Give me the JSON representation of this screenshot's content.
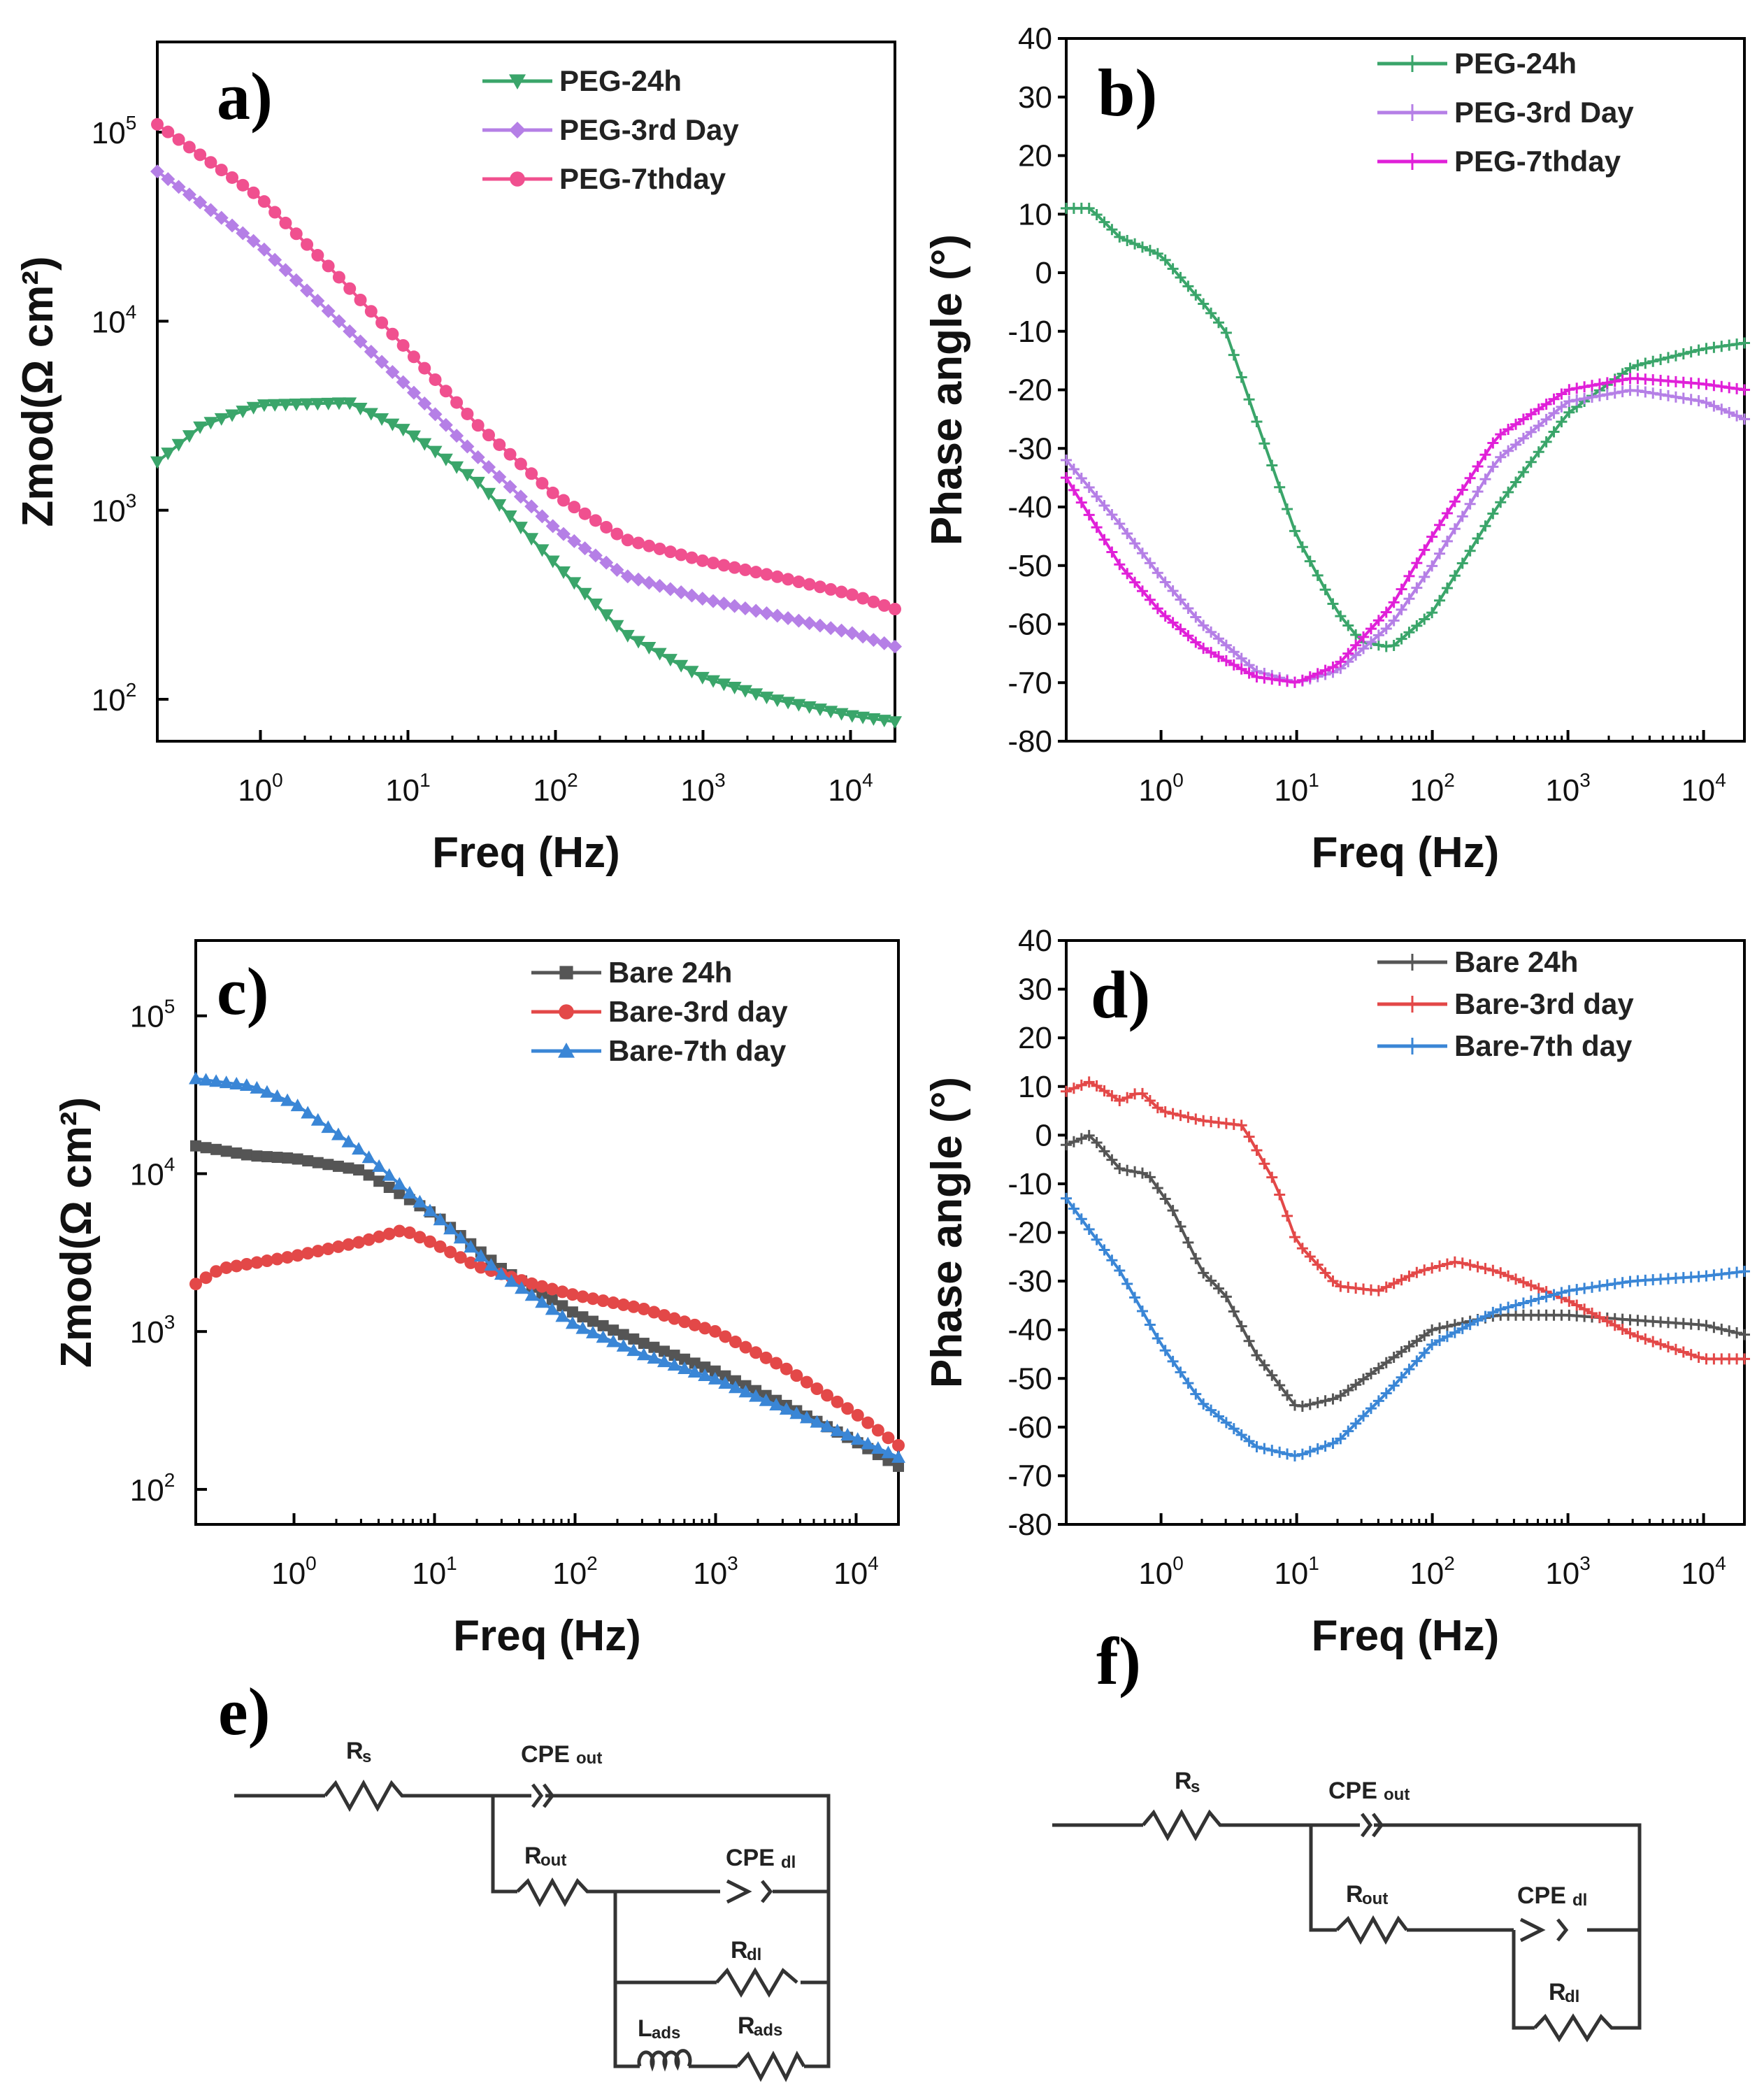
{
  "colors": {
    "peg_24h": "#3aa56a",
    "peg_3rd": "#b57fe6",
    "peg_7th": "#f0508f",
    "peg_7th_phase": "#e020d8",
    "bare_24h": "#555555",
    "bare_3rd": "#e34848",
    "bare_7th": "#3a86d6",
    "axis": "#000000",
    "circuit": "#333333"
  },
  "chart_data": [
    {
      "panel": "a)",
      "type": "line",
      "scale": "log-log",
      "xlabel": "Freq (Hz)",
      "ylabel": "Zmod(Ω cm²)",
      "xlim": [
        0.2,
        20000
      ],
      "ylim": [
        60,
        300000
      ],
      "x_ticks": [
        "10^0",
        "10^1",
        "10^2",
        "10^3",
        "10^4"
      ],
      "y_ticks": [
        "10^2",
        "10^3",
        "10^4",
        "10^5"
      ],
      "legend_position": "top-right",
      "series": [
        {
          "name": "PEG-24h",
          "marker": "triangle-down",
          "color_key": "peg_24h",
          "points": [
            [
              0.2,
              1800
            ],
            [
              0.4,
              2800
            ],
            [
              1,
              3600
            ],
            [
              4,
              3700
            ],
            [
              10,
              2600
            ],
            [
              30,
              1400
            ],
            [
              100,
              520
            ],
            [
              300,
              220
            ],
            [
              1000,
              130
            ],
            [
              3000,
              100
            ],
            [
              10000,
              82
            ],
            [
              20000,
              76
            ]
          ]
        },
        {
          "name": "PEG-3rd Day",
          "marker": "diamond",
          "color_key": "peg_3rd",
          "points": [
            [
              0.2,
              62000
            ],
            [
              1,
              25000
            ],
            [
              3,
              11000
            ],
            [
              10,
              4500
            ],
            [
              30,
              1900
            ],
            [
              100,
              800
            ],
            [
              300,
              450
            ],
            [
              1000,
              340
            ],
            [
              3000,
              280
            ],
            [
              10000,
              225
            ],
            [
              20000,
              190
            ]
          ]
        },
        {
          "name": "PEG-7thday",
          "marker": "circle",
          "color_key": "peg_7th",
          "points": [
            [
              0.2,
              110000
            ],
            [
              1,
              45000
            ],
            [
              3,
              19000
            ],
            [
              10,
              7000
            ],
            [
              30,
              2800
            ],
            [
              100,
              1200
            ],
            [
              300,
              700
            ],
            [
              1000,
              540
            ],
            [
              3000,
              450
            ],
            [
              10000,
              360
            ],
            [
              20000,
              300
            ]
          ]
        }
      ]
    },
    {
      "panel": "b)",
      "type": "line",
      "scale": "log-x",
      "xlabel": "Freq (Hz)",
      "ylabel": "Phase angle (°)",
      "xlim": [
        0.2,
        20000
      ],
      "ylim": [
        -80,
        40
      ],
      "x_ticks": [
        "10^0",
        "10^1",
        "10^2",
        "10^3",
        "10^4"
      ],
      "y_ticks": [
        40,
        30,
        20,
        10,
        0,
        -10,
        -20,
        -30,
        -40,
        -50,
        -60,
        -70,
        -80
      ],
      "legend_position": "top-right",
      "series": [
        {
          "name": "PEG-24h",
          "marker": "cross",
          "color_key": "peg_24h",
          "points": [
            [
              0.2,
              11
            ],
            [
              0.3,
              11
            ],
            [
              0.5,
              6
            ],
            [
              1,
              3
            ],
            [
              2,
              -5
            ],
            [
              3,
              -10
            ],
            [
              5,
              -25
            ],
            [
              10,
              -45
            ],
            [
              20,
              -58
            ],
            [
              30,
              -63
            ],
            [
              50,
              -64
            ],
            [
              100,
              -58
            ],
            [
              300,
              -40
            ],
            [
              1000,
              -24
            ],
            [
              3000,
              -16
            ],
            [
              10000,
              -13
            ],
            [
              20000,
              -12
            ]
          ]
        },
        {
          "name": "PEG-3rd Day",
          "marker": "cross",
          "color_key": "peg_3rd",
          "points": [
            [
              0.2,
              -32
            ],
            [
              0.5,
              -43
            ],
            [
              1,
              -52
            ],
            [
              2,
              -60
            ],
            [
              5,
              -68
            ],
            [
              10,
              -70
            ],
            [
              20,
              -68
            ],
            [
              50,
              -60
            ],
            [
              100,
              -50
            ],
            [
              300,
              -32
            ],
            [
              1000,
              -22
            ],
            [
              3000,
              -20
            ],
            [
              10000,
              -22
            ],
            [
              20000,
              -25
            ]
          ]
        },
        {
          "name": "PEG-7thday",
          "marker": "cross",
          "color_key": "peg_7th_phase",
          "points": [
            [
              0.2,
              -35
            ],
            [
              0.5,
              -50
            ],
            [
              1,
              -58
            ],
            [
              2,
              -64
            ],
            [
              5,
              -69
            ],
            [
              10,
              -70
            ],
            [
              20,
              -67
            ],
            [
              50,
              -57
            ],
            [
              100,
              -45
            ],
            [
              300,
              -28
            ],
            [
              1000,
              -20
            ],
            [
              3000,
              -18
            ],
            [
              10000,
              -19
            ],
            [
              20000,
              -20
            ]
          ]
        }
      ]
    },
    {
      "panel": "c)",
      "type": "line",
      "scale": "log-log",
      "xlabel": "Freq (Hz)",
      "ylabel": "Zmod(Ω cm²)",
      "xlim": [
        0.2,
        20000
      ],
      "ylim": [
        60,
        300000
      ],
      "x_ticks": [
        "10^0",
        "10^1",
        "10^2",
        "10^3",
        "10^4"
      ],
      "y_ticks": [
        "10^2",
        "10^3",
        "10^4",
        "10^5"
      ],
      "legend_position": "top-right",
      "series": [
        {
          "name": "Bare 24h",
          "marker": "square",
          "color_key": "bare_24h",
          "points": [
            [
              0.2,
              15000
            ],
            [
              0.5,
              13000
            ],
            [
              1,
              12500
            ],
            [
              3,
              10500
            ],
            [
              10,
              5500
            ],
            [
              30,
              2500
            ],
            [
              100,
              1300
            ],
            [
              300,
              850
            ],
            [
              1000,
              560
            ],
            [
              3000,
              350
            ],
            [
              10000,
              200
            ],
            [
              20000,
              140
            ]
          ]
        },
        {
          "name": "Bare-3rd day",
          "marker": "circle",
          "color_key": "bare_3rd",
          "points": [
            [
              0.2,
              2000
            ],
            [
              0.3,
              2500
            ],
            [
              1,
              3000
            ],
            [
              3,
              3700
            ],
            [
              6,
              4400
            ],
            [
              10,
              3600
            ],
            [
              20,
              2600
            ],
            [
              50,
              2000
            ],
            [
              100,
              1700
            ],
            [
              300,
              1400
            ],
            [
              1000,
              1000
            ],
            [
              3000,
              600
            ],
            [
              10000,
              300
            ],
            [
              20000,
              190
            ]
          ]
        },
        {
          "name": "Bare-7th day",
          "marker": "triangle-up",
          "color_key": "bare_7th",
          "points": [
            [
              0.2,
              40000
            ],
            [
              0.5,
              36000
            ],
            [
              1,
              28000
            ],
            [
              3,
              14000
            ],
            [
              10,
              5500
            ],
            [
              30,
              2300
            ],
            [
              100,
              1100
            ],
            [
              300,
              720
            ],
            [
              1000,
              500
            ],
            [
              3000,
              330
            ],
            [
              10000,
              210
            ],
            [
              20000,
              160
            ]
          ]
        }
      ]
    },
    {
      "panel": "d)",
      "type": "line",
      "scale": "log-x",
      "xlabel": "Freq (Hz)",
      "ylabel": "Phase angle (°)",
      "xlim": [
        0.2,
        20000
      ],
      "ylim": [
        -80,
        40
      ],
      "x_ticks": [
        "10^0",
        "10^1",
        "10^2",
        "10^3",
        "10^4"
      ],
      "y_ticks": [
        40,
        30,
        20,
        10,
        0,
        -10,
        -20,
        -30,
        -40,
        -50,
        -60,
        -70,
        -80
      ],
      "legend_position": "top-right",
      "series": [
        {
          "name": "Bare 24h",
          "marker": "cross",
          "color_key": "bare_24h",
          "points": [
            [
              0.2,
              -2
            ],
            [
              0.3,
              0
            ],
            [
              0.5,
              -7
            ],
            [
              0.8,
              -8
            ],
            [
              1.2,
              -15
            ],
            [
              2,
              -28
            ],
            [
              3,
              -33
            ],
            [
              5,
              -45
            ],
            [
              10,
              -56
            ],
            [
              20,
              -54
            ],
            [
              50,
              -46
            ],
            [
              100,
              -40
            ],
            [
              300,
              -37
            ],
            [
              1000,
              -37
            ],
            [
              3000,
              -38
            ],
            [
              10000,
              -39
            ],
            [
              20000,
              -41
            ]
          ]
        },
        {
          "name": "Bare-3rd day",
          "marker": "cross",
          "color_key": "bare_3rd",
          "points": [
            [
              0.2,
              9
            ],
            [
              0.3,
              11
            ],
            [
              0.5,
              7
            ],
            [
              0.7,
              9
            ],
            [
              1,
              5
            ],
            [
              2,
              3
            ],
            [
              4,
              2
            ],
            [
              7,
              -10
            ],
            [
              10,
              -22
            ],
            [
              20,
              -31
            ],
            [
              40,
              -32
            ],
            [
              80,
              -28
            ],
            [
              150,
              -26
            ],
            [
              300,
              -28
            ],
            [
              1000,
              -34
            ],
            [
              3000,
              -41
            ],
            [
              10000,
              -46
            ],
            [
              20000,
              -46
            ]
          ]
        },
        {
          "name": "Bare-7th day",
          "marker": "cross",
          "color_key": "bare_7th",
          "points": [
            [
              0.2,
              -13
            ],
            [
              0.5,
              -28
            ],
            [
              1,
              -43
            ],
            [
              2,
              -55
            ],
            [
              5,
              -64
            ],
            [
              10,
              -66
            ],
            [
              20,
              -63
            ],
            [
              50,
              -52
            ],
            [
              100,
              -43
            ],
            [
              300,
              -36
            ],
            [
              1000,
              -32
            ],
            [
              3000,
              -30
            ],
            [
              10000,
              -29
            ],
            [
              20000,
              -28
            ]
          ]
        }
      ]
    }
  ],
  "circuits": {
    "e": {
      "panel": "e)",
      "labels": {
        "rs": "Rs",
        "cpe_out": "CPEout",
        "rout": "Rout",
        "cpe_dl": "CPEdl",
        "rdl": "Rdl",
        "lads": "Lads",
        "rads": "Rads"
      }
    },
    "f": {
      "panel": "f)",
      "labels": {
        "rs": "Rs",
        "cpe_out": "CPEout",
        "rout": "Rout",
        "cpe_dl": "CPEdl",
        "rdl": "Rdl"
      }
    }
  }
}
